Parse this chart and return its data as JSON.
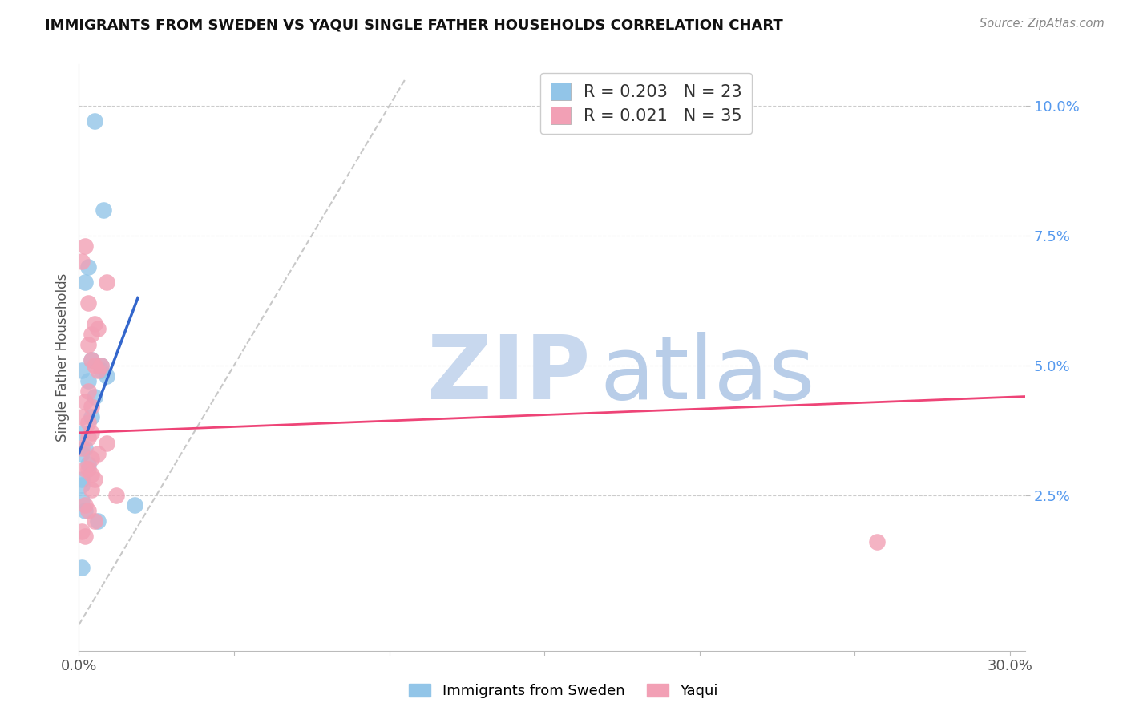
{
  "title": "IMMIGRANTS FROM SWEDEN VS YAQUI SINGLE FATHER HOUSEHOLDS CORRELATION CHART",
  "source": "Source: ZipAtlas.com",
  "ylabel": "Single Father Households",
  "x_min": 0.0,
  "x_max": 0.305,
  "y_min": -0.005,
  "y_max": 0.108,
  "y_ticks": [
    0.025,
    0.05,
    0.075,
    0.1
  ],
  "y_tick_labels": [
    "2.5%",
    "5.0%",
    "7.5%",
    "10.0%"
  ],
  "x_ticks": [
    0.0,
    0.05,
    0.1,
    0.15,
    0.2,
    0.25,
    0.3
  ],
  "x_tick_labels": [
    "0.0%",
    "",
    "",
    "",
    "",
    "",
    "30.0%"
  ],
  "legend_r1": "R = 0.203",
  "legend_n1": "N = 23",
  "legend_r2": "R = 0.021",
  "legend_n2": "N = 35",
  "color_blue": "#92C5E8",
  "color_pink": "#F2A0B5",
  "color_blue_line": "#3366CC",
  "color_pink_line": "#EE4477",
  "color_diag_line": "#C8C8C8",
  "watermark_zip_color": "#C8D8EE",
  "watermark_atlas_color": "#B8CDE8",
  "sweden_x": [
    0.005,
    0.008,
    0.003,
    0.002,
    0.001,
    0.004,
    0.007,
    0.007,
    0.003,
    0.009,
    0.005,
    0.004,
    0.001,
    0.002,
    0.001,
    0.003,
    0.001,
    0.001,
    0.001,
    0.002,
    0.018,
    0.006,
    0.001
  ],
  "sweden_y": [
    0.097,
    0.08,
    0.069,
    0.066,
    0.049,
    0.051,
    0.05,
    0.049,
    0.047,
    0.048,
    0.044,
    0.04,
    0.037,
    0.034,
    0.033,
    0.031,
    0.028,
    0.027,
    0.024,
    0.022,
    0.023,
    0.02,
    0.011
  ],
  "yaqui_x": [
    0.002,
    0.001,
    0.009,
    0.003,
    0.005,
    0.006,
    0.004,
    0.003,
    0.004,
    0.007,
    0.005,
    0.006,
    0.003,
    0.002,
    0.004,
    0.001,
    0.003,
    0.009,
    0.006,
    0.004,
    0.003,
    0.002,
    0.004,
    0.005,
    0.004,
    0.012,
    0.002,
    0.003,
    0.005,
    0.004,
    0.003,
    0.001,
    0.001,
    0.002,
    0.257
  ],
  "yaqui_y": [
    0.073,
    0.07,
    0.066,
    0.062,
    0.058,
    0.057,
    0.056,
    0.054,
    0.051,
    0.05,
    0.05,
    0.049,
    0.045,
    0.043,
    0.042,
    0.04,
    0.039,
    0.035,
    0.033,
    0.032,
    0.03,
    0.03,
    0.029,
    0.028,
    0.026,
    0.025,
    0.023,
    0.022,
    0.02,
    0.037,
    0.036,
    0.034,
    0.018,
    0.017,
    0.016
  ],
  "blue_line_x": [
    0.0,
    0.019
  ],
  "blue_line_y": [
    0.033,
    0.063
  ],
  "pink_line_x": [
    0.0,
    0.305
  ],
  "pink_line_y": [
    0.037,
    0.044
  ]
}
